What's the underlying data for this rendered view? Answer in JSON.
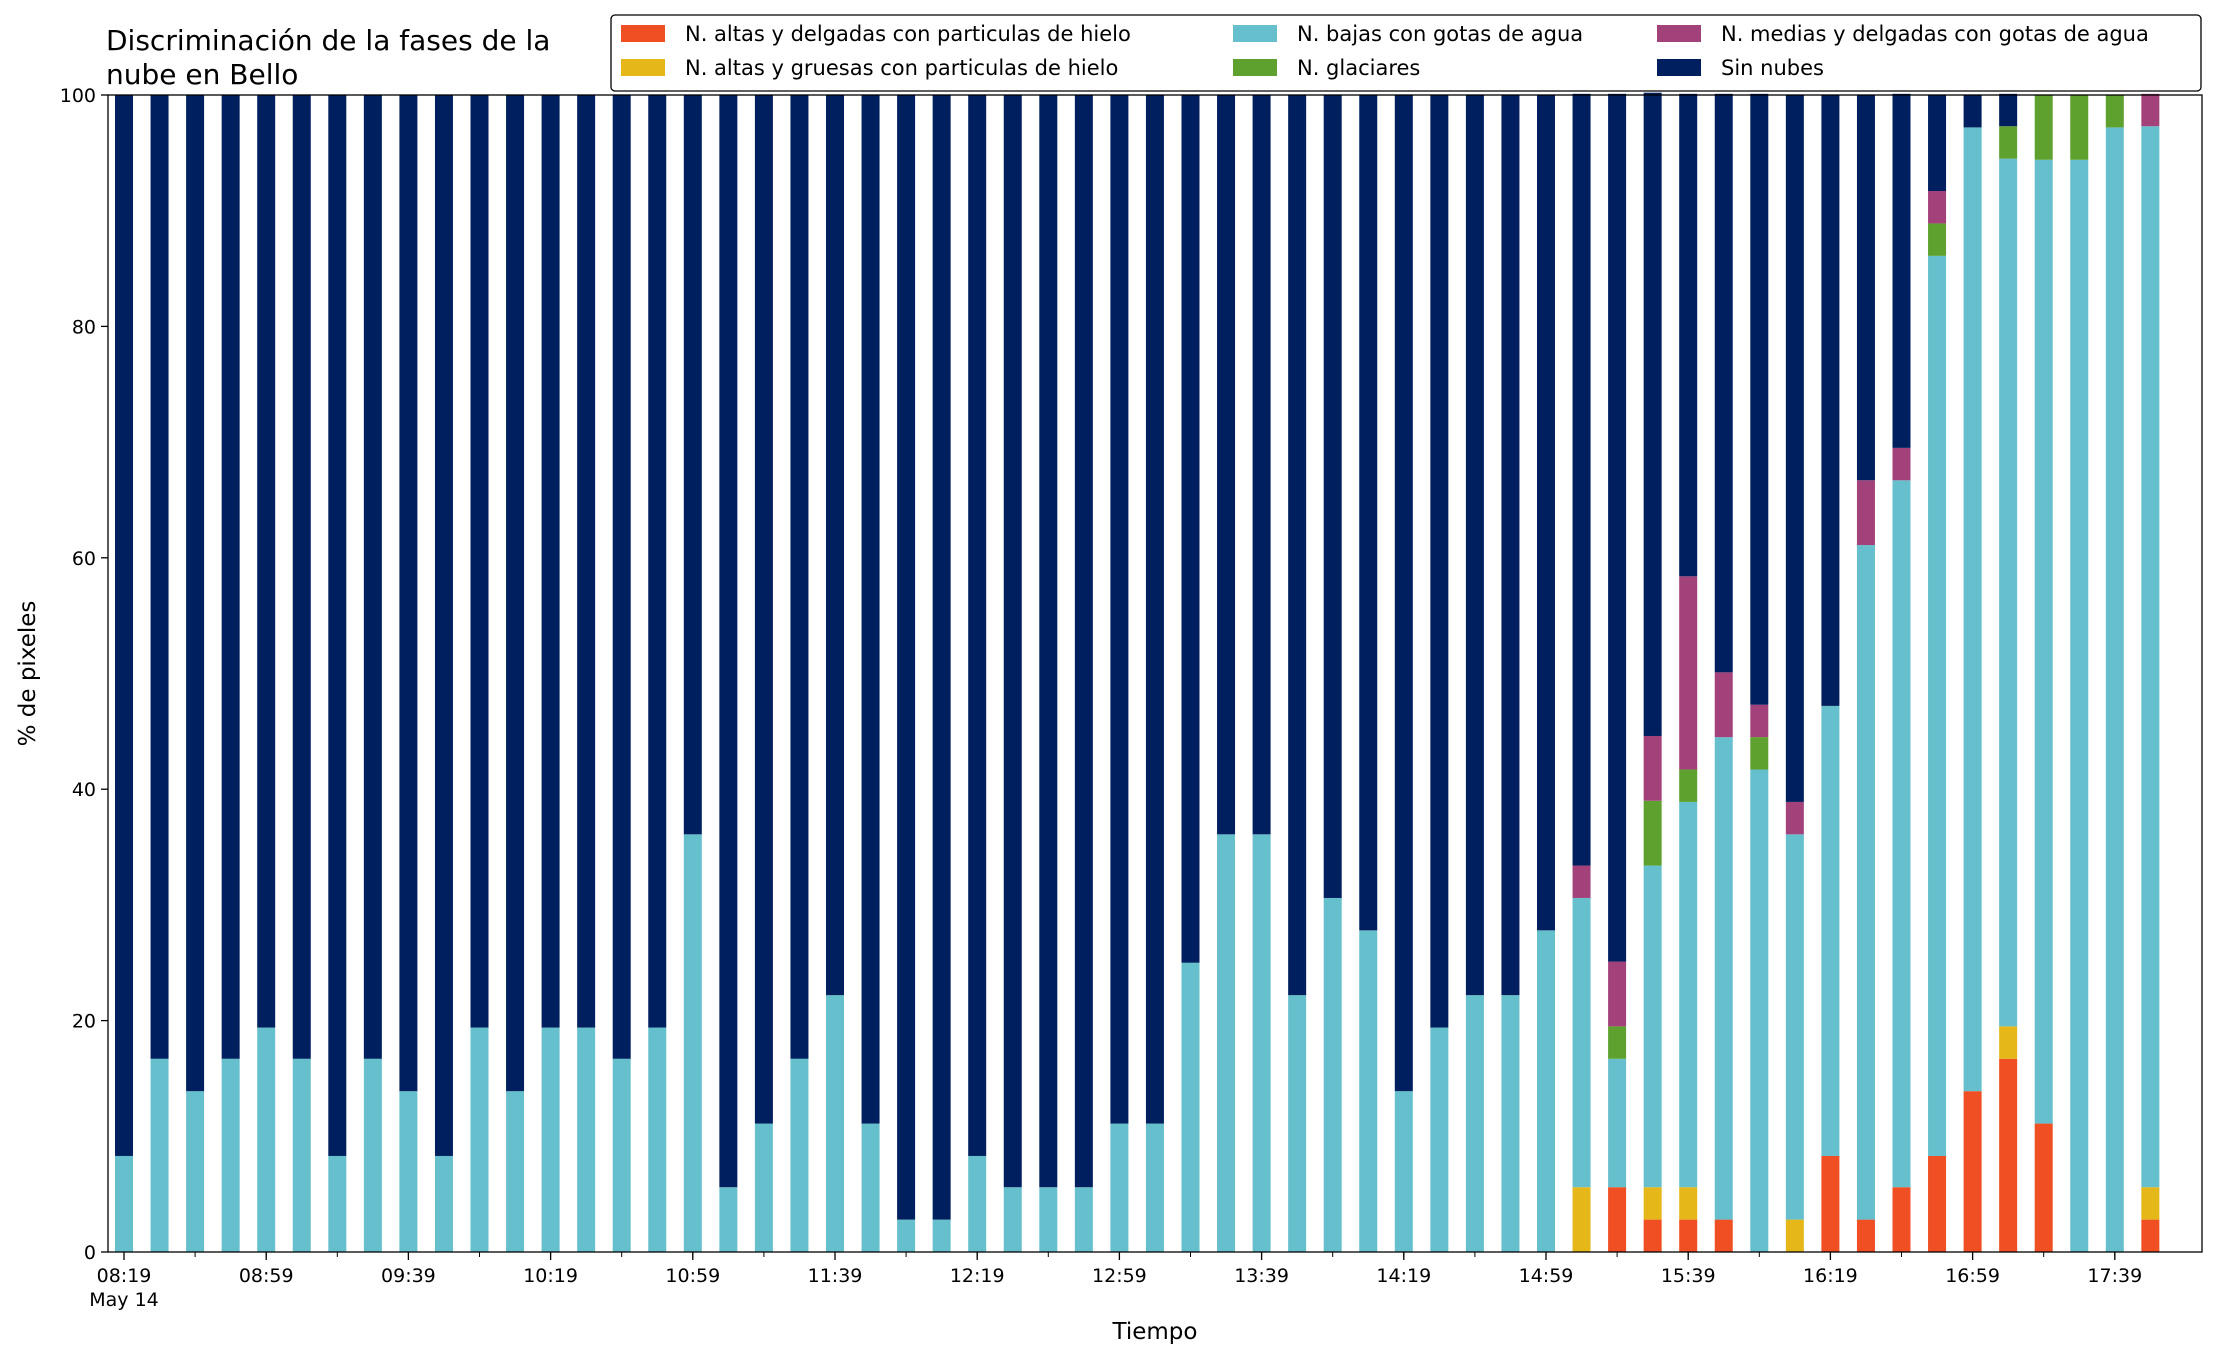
{
  "chart_data": {
    "type": "bar",
    "stacked": true,
    "title": "Discriminación de la fases de la\nnube en Bello",
    "xlabel": "Tiempo",
    "ylabel": "% de pixeles",
    "ylim": [
      0,
      100
    ],
    "yticks": [
      0,
      20,
      40,
      60,
      80,
      100
    ],
    "grid": false,
    "legend_position": "top-right",
    "x_ticks": [
      {
        "index": 0,
        "label": "08:19",
        "sublabel": "May 14"
      },
      {
        "index": 4,
        "label": "08:59"
      },
      {
        "index": 8,
        "label": "09:39"
      },
      {
        "index": 12,
        "label": "10:19"
      },
      {
        "index": 16,
        "label": "10:59"
      },
      {
        "index": 20,
        "label": "11:39"
      },
      {
        "index": 24,
        "label": "12:19"
      },
      {
        "index": 28,
        "label": "12:59"
      },
      {
        "index": 32,
        "label": "13:39"
      },
      {
        "index": 36,
        "label": "14:19"
      },
      {
        "index": 40,
        "label": "14:59"
      },
      {
        "index": 44,
        "label": "15:39"
      },
      {
        "index": 48,
        "label": "16:19"
      },
      {
        "index": 52,
        "label": "16:59"
      },
      {
        "index": 56,
        "label": "17:39"
      }
    ],
    "bar_count": 58,
    "series": [
      {
        "name": "N. altas y delgadas con particulas de hielo",
        "color": "#f04e23",
        "values": [
          0,
          0,
          0,
          0,
          0,
          0,
          0,
          0,
          0,
          0,
          0,
          0,
          0,
          0,
          0,
          0,
          0,
          0,
          0,
          0,
          0,
          0,
          0,
          0,
          0,
          0,
          0,
          0,
          0,
          0,
          0,
          0,
          0,
          0,
          0,
          0,
          0,
          0,
          0,
          0,
          0,
          0,
          5.6,
          2.8,
          2.8,
          2.8,
          0,
          0,
          8.3,
          2.8,
          5.6,
          8.3,
          13.9,
          16.7,
          11.1,
          0,
          0,
          2.8
        ]
      },
      {
        "name": "N. altas y gruesas con particulas de hielo",
        "color": "#e6b718",
        "values": [
          0,
          0,
          0,
          0,
          0,
          0,
          0,
          0,
          0,
          0,
          0,
          0,
          0,
          0,
          0,
          0,
          0,
          0,
          0,
          0,
          0,
          0,
          0,
          0,
          0,
          0,
          0,
          0,
          0,
          0,
          0,
          0,
          0,
          0,
          0,
          0,
          0,
          0,
          0,
          0,
          0,
          5.6,
          0,
          2.8,
          2.8,
          0,
          0,
          2.8,
          0,
          0,
          0,
          0,
          0,
          2.8,
          0,
          0,
          0,
          2.8
        ]
      },
      {
        "name": "N. bajas con gotas de agua",
        "color": "#66bfcc",
        "values": [
          8.3,
          16.7,
          13.9,
          16.7,
          19.4,
          16.7,
          8.3,
          16.7,
          13.9,
          8.3,
          19.4,
          13.9,
          19.4,
          19.4,
          16.7,
          19.4,
          36.1,
          5.6,
          11.1,
          16.7,
          22.2,
          11.1,
          2.8,
          2.8,
          8.3,
          5.6,
          5.6,
          5.6,
          11.1,
          11.1,
          25,
          36.1,
          36.1,
          22.2,
          30.6,
          27.8,
          13.9,
          19.4,
          22.2,
          22.2,
          27.8,
          25,
          11.1,
          27.8,
          33.3,
          41.7,
          41.7,
          33.3,
          38.9,
          58.3,
          61.1,
          77.8,
          83.3,
          75,
          83.3,
          94.4,
          97.2,
          91.7
        ]
      },
      {
        "name": "N. glaciares",
        "color": "#5fa12e",
        "values": [
          0,
          0,
          0,
          0,
          0,
          0,
          0,
          0,
          0,
          0,
          0,
          0,
          0,
          0,
          0,
          0,
          0,
          0,
          0,
          0,
          0,
          0,
          0,
          0,
          0,
          0,
          0,
          0,
          0,
          0,
          0,
          0,
          0,
          0,
          0,
          0,
          0,
          0,
          0,
          0,
          0,
          0,
          2.8,
          5.6,
          2.8,
          0,
          2.8,
          0,
          0,
          0,
          0,
          2.8,
          0,
          2.8,
          5.6,
          5.6,
          2.8,
          0
        ]
      },
      {
        "name": "N. medias y delgadas con gotas de agua",
        "color": "#a3427a",
        "values": [
          0,
          0,
          0,
          0,
          0,
          0,
          0,
          0,
          0,
          0,
          0,
          0,
          0,
          0,
          0,
          0,
          0,
          0,
          0,
          0,
          0,
          0,
          0,
          0,
          0,
          0,
          0,
          0,
          0,
          0,
          0,
          0,
          0,
          0,
          0,
          0,
          0,
          0,
          0,
          0,
          0,
          2.8,
          5.6,
          5.6,
          16.7,
          5.6,
          2.8,
          2.8,
          0,
          5.6,
          2.8,
          2.8,
          0,
          0,
          0,
          0,
          0,
          2.8
        ]
      },
      {
        "name": "Sin nubes",
        "color": "#001f5e",
        "values": [
          91.7,
          83.3,
          86.1,
          83.3,
          80.6,
          83.3,
          91.7,
          83.3,
          86.1,
          91.7,
          80.6,
          86.1,
          80.6,
          80.6,
          83.3,
          80.6,
          63.9,
          94.4,
          88.9,
          83.3,
          77.8,
          88.9,
          97.2,
          97.2,
          91.7,
          94.4,
          94.4,
          94.4,
          88.9,
          88.9,
          75,
          63.9,
          63.9,
          77.8,
          69.4,
          72.2,
          86.1,
          80.6,
          77.8,
          77.8,
          72.2,
          66.7,
          75,
          55.6,
          41.7,
          50,
          52.8,
          61.1,
          52.8,
          33.3,
          30.6,
          8.3,
          2.8,
          2.8,
          0,
          0,
          0,
          0
        ]
      }
    ]
  }
}
